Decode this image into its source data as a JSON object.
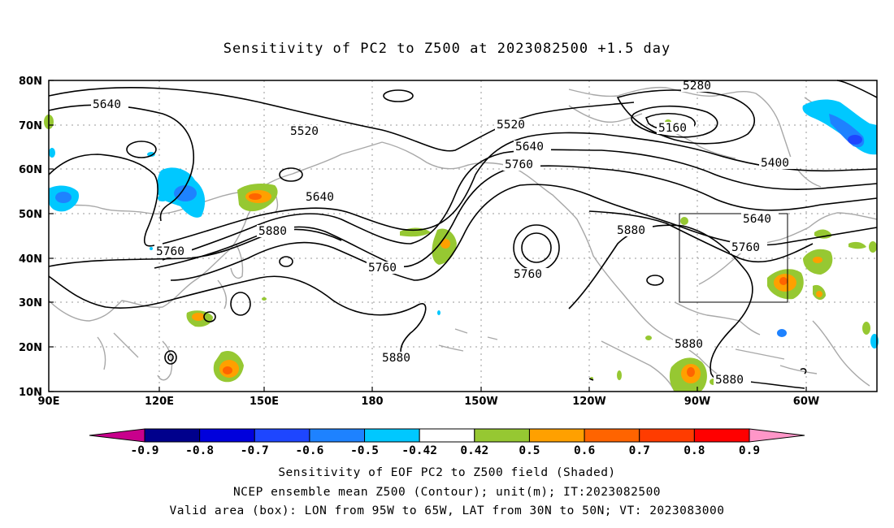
{
  "title": "Sensitivity of PC2 to Z500 at 2023082500 +1.5 day",
  "lat_labels": [
    "80N",
    "70N",
    "60N",
    "50N",
    "40N",
    "30N",
    "20N",
    "10N"
  ],
  "lon_labels": [
    "90E",
    "120E",
    "150E",
    "180",
    "150W",
    "120W",
    "90W",
    "60W"
  ],
  "contour_labels": {
    "c5640a": "5640",
    "c5520a": "5520",
    "c5640b": "5640",
    "c5760a": "5760",
    "c5880a": "5880",
    "c5760b": "5760",
    "c5880b": "5880",
    "c5520b": "5520",
    "c5640c": "5640",
    "c5760c": "5760",
    "c5760d": "5760",
    "c5280": "5280",
    "c5160": "5160",
    "c5400": "5400",
    "c5880c": "5880",
    "c5640d": "5640",
    "c5760e": "5760",
    "c5880d": "5880",
    "c5880e": "5880"
  },
  "colorbar": {
    "labels": [
      "-0.9",
      "-0.8",
      "-0.7",
      "-0.6",
      "-0.5",
      "-0.42",
      "0.42",
      "0.5",
      "0.6",
      "0.7",
      "0.8",
      "0.9"
    ],
    "colors": {
      "lower_extend": "#c8008c",
      "bins": [
        "#00008c",
        "#0000dc",
        "#1e46ff",
        "#1e82ff",
        "#00c8ff",
        "#ffffff",
        "#96c832",
        "#ffa000",
        "#ff6400",
        "#ff3c00",
        "#ff0000"
      ],
      "upper_extend": "#ff96c8"
    }
  },
  "captions": {
    "line1": "Sensitivity of EOF PC2 to Z500 field (Shaded)",
    "line2": "NCEP ensemble mean Z500 (Contour); unit(m); IT:2023082500",
    "line3": "Valid area (box): LON from 95W to 65W, LAT from 30N to 50N; VT: 2023083000"
  },
  "valid_box": {
    "lon_range": [
      "95W",
      "65W"
    ],
    "lat_range": [
      "30N",
      "50N"
    ]
  }
}
